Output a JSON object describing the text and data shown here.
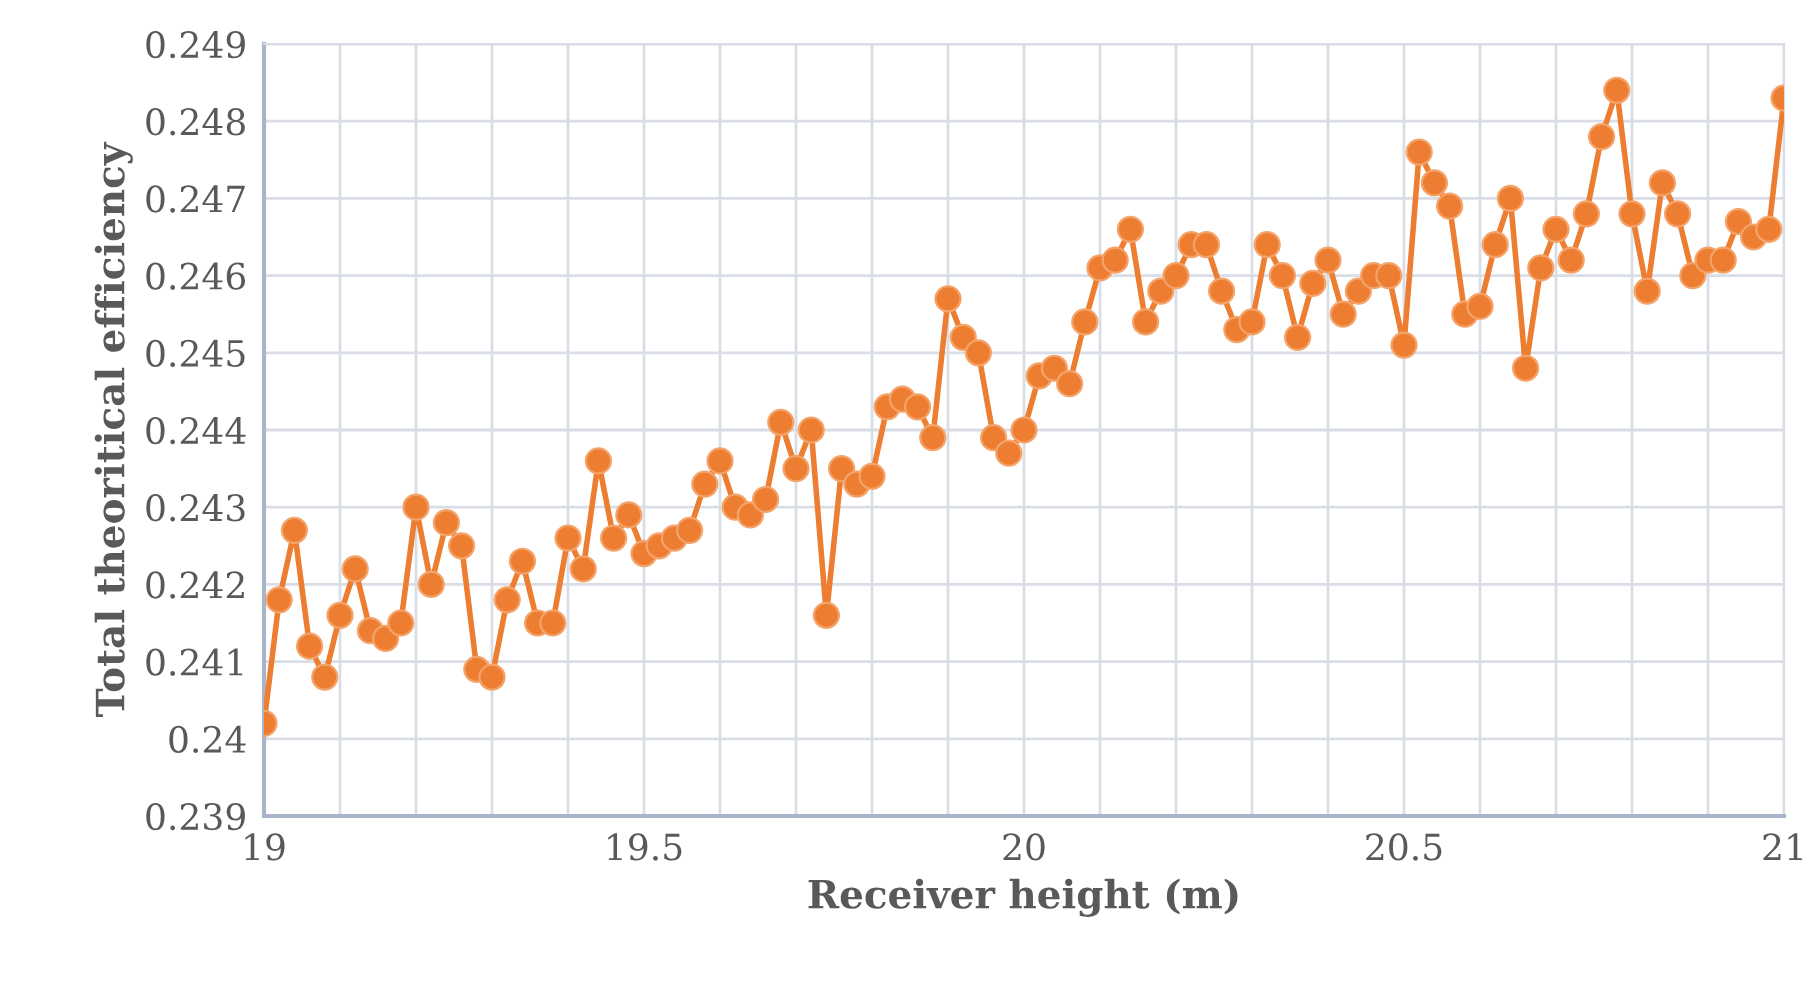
{
  "chart_data": {
    "type": "line",
    "xlabel": "Receiver height (m)",
    "ylabel": "Total theoritical efficiency",
    "x": [
      19.0,
      19.02,
      19.04,
      19.06,
      19.08,
      19.1,
      19.12,
      19.14,
      19.16,
      19.18,
      19.2,
      19.22,
      19.24,
      19.26,
      19.28,
      19.3,
      19.32,
      19.34,
      19.36,
      19.38,
      19.4,
      19.42,
      19.44,
      19.46,
      19.48,
      19.5,
      19.52,
      19.54,
      19.56,
      19.58,
      19.6,
      19.62,
      19.64,
      19.66,
      19.68,
      19.7,
      19.72,
      19.74,
      19.76,
      19.78,
      19.8,
      19.82,
      19.84,
      19.86,
      19.88,
      19.9,
      19.92,
      19.94,
      19.96,
      19.98,
      20.0,
      20.02,
      20.04,
      20.06,
      20.08,
      20.1,
      20.12,
      20.14,
      20.16,
      20.18,
      20.2,
      20.22,
      20.24,
      20.26,
      20.28,
      20.3,
      20.32,
      20.34,
      20.36,
      20.38,
      20.4,
      20.42,
      20.44,
      20.46,
      20.48,
      20.5,
      20.52,
      20.54,
      20.56,
      20.58,
      20.6,
      20.62,
      20.64,
      20.66,
      20.68,
      20.7,
      20.72,
      20.74,
      20.76,
      20.78,
      20.8,
      20.82,
      20.84,
      20.86,
      20.88,
      20.9,
      20.92,
      20.94,
      20.96,
      20.98,
      21.0
    ],
    "series": [
      {
        "color": "#ed7d31",
        "values": [
          0.2402,
          0.2418,
          0.2427,
          0.2412,
          0.2408,
          0.2416,
          0.2422,
          0.2414,
          0.2413,
          0.2415,
          0.243,
          0.242,
          0.2428,
          0.2425,
          0.2409,
          0.2408,
          0.2418,
          0.2423,
          0.2415,
          0.2415,
          0.2426,
          0.2422,
          0.2436,
          0.2426,
          0.2429,
          0.2424,
          0.2425,
          0.2426,
          0.2427,
          0.2433,
          0.2436,
          0.243,
          0.2429,
          0.2431,
          0.2441,
          0.2435,
          0.244,
          0.2416,
          0.2435,
          0.2433,
          0.2434,
          0.2443,
          0.2444,
          0.2443,
          0.2439,
          0.2457,
          0.2452,
          0.245,
          0.2439,
          0.2437,
          0.244,
          0.2447,
          0.2448,
          0.2446,
          0.2454,
          0.2461,
          0.2462,
          0.2466,
          0.2454,
          0.2458,
          0.246,
          0.2464,
          0.2464,
          0.2458,
          0.2453,
          0.2454,
          0.2464,
          0.246,
          0.2452,
          0.2459,
          0.2462,
          0.2455,
          0.2458,
          0.246,
          0.246,
          0.2451,
          0.2476,
          0.2472,
          0.2469,
          0.2455,
          0.2456,
          0.2464,
          0.247,
          0.2448,
          0.2461,
          0.2466,
          0.2462,
          0.2468,
          0.2478,
          0.2484,
          0.2468,
          0.2458,
          0.2472,
          0.2468,
          0.246,
          0.2462,
          0.2462,
          0.2467,
          0.2465,
          0.2466,
          0.2483
        ]
      }
    ],
    "xlim": [
      19,
      21
    ],
    "xticks": [
      19,
      {
        "value": 19.1,
        "label": null
      },
      {
        "value": 19.2,
        "label": null
      },
      {
        "value": 19.3,
        "label": null
      },
      {
        "value": 19.4,
        "label": null
      },
      19.5,
      {
        "value": 19.6,
        "label": null
      },
      {
        "value": 19.7,
        "label": null
      },
      {
        "value": 19.8,
        "label": null
      },
      {
        "value": 19.9,
        "label": null
      },
      20,
      {
        "value": 20.1,
        "label": null
      },
      {
        "value": 20.2,
        "label": null
      },
      {
        "value": 20.3,
        "label": null
      },
      {
        "value": 20.4,
        "label": null
      },
      20.5,
      {
        "value": 20.6,
        "label": null
      },
      {
        "value": 20.7,
        "label": null
      },
      {
        "value": 20.8,
        "label": null
      },
      {
        "value": 20.9,
        "label": null
      },
      21
    ],
    "ylim": [
      0.239,
      0.249
    ],
    "yticks": [
      0.239,
      0.24,
      0.241,
      0.242,
      0.243,
      0.244,
      0.245,
      0.246,
      0.247,
      0.248,
      0.249
    ],
    "grid": true,
    "marker": "circle",
    "line_style": "solid",
    "legend": false
  }
}
